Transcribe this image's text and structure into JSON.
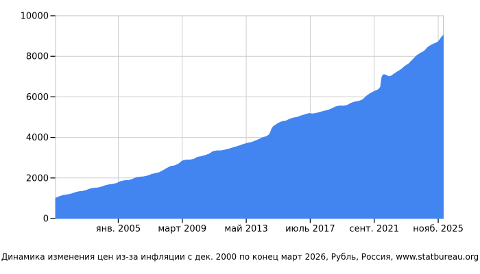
{
  "caption": {
    "text": "Динамика изменения цен из-за инфляции с дек. 2000 по конец март 2026, Рубль, Россия, www.statbureau.org"
  },
  "colors": {
    "area_fill": "#4285f0",
    "gridline": "#cccccc",
    "plot_border": "#c0c0c0",
    "tick_mark": "#000000",
    "label_text": "#000000",
    "background": "#ffffff"
  },
  "chart_data": {
    "type": "area",
    "title": "Динамика изменения цен из-за инфляции с дек. 2000 по конец март 2026, Рубль, Россия, www.statbureau.org",
    "xlabel": "",
    "ylabel": "",
    "x_unit": "months since дек. 2000",
    "x_start_label": "дек. 2000",
    "x_end_label": "март 2026",
    "x_max": 303,
    "ylim": [
      0,
      10000
    ],
    "grid": true,
    "legend": "none",
    "y_ticks": [
      {
        "value": 0,
        "label": "0"
      },
      {
        "value": 2000,
        "label": "2000"
      },
      {
        "value": 4000,
        "label": "4000"
      },
      {
        "value": 6000,
        "label": "6000"
      },
      {
        "value": 8000,
        "label": "8000"
      },
      {
        "value": 10000,
        "label": "10000"
      }
    ],
    "x_ticks": [
      {
        "month": 49,
        "label": "янв. 2005"
      },
      {
        "month": 99,
        "label": "март 2009"
      },
      {
        "month": 149,
        "label": "май 2013"
      },
      {
        "month": 199,
        "label": "июль 2017"
      },
      {
        "month": 249,
        "label": "сент. 2021"
      },
      {
        "month": 299,
        "label": "нояб. 2025"
      }
    ],
    "points": [
      [
        0,
        1000
      ],
      [
        3,
        1080
      ],
      [
        6,
        1140
      ],
      [
        9,
        1170
      ],
      [
        12,
        1205
      ],
      [
        15,
        1272
      ],
      [
        18,
        1322
      ],
      [
        21,
        1342
      ],
      [
        24,
        1392
      ],
      [
        27,
        1462
      ],
      [
        30,
        1500
      ],
      [
        33,
        1512
      ],
      [
        36,
        1557
      ],
      [
        39,
        1630
      ],
      [
        42,
        1670
      ],
      [
        45,
        1690
      ],
      [
        48,
        1740
      ],
      [
        51,
        1830
      ],
      [
        54,
        1873
      ],
      [
        57,
        1880
      ],
      [
        60,
        1928
      ],
      [
        63,
        2022
      ],
      [
        66,
        2045
      ],
      [
        69,
        2060
      ],
      [
        72,
        2105
      ],
      [
        75,
        2176
      ],
      [
        78,
        2224
      ],
      [
        81,
        2266
      ],
      [
        84,
        2362
      ],
      [
        87,
        2478
      ],
      [
        90,
        2570
      ],
      [
        93,
        2602
      ],
      [
        96,
        2685
      ],
      [
        99,
        2842
      ],
      [
        102,
        2890
      ],
      [
        105,
        2890
      ],
      [
        108,
        2922
      ],
      [
        111,
        3022
      ],
      [
        114,
        3057
      ],
      [
        117,
        3111
      ],
      [
        120,
        3180
      ],
      [
        123,
        3303
      ],
      [
        126,
        3341
      ],
      [
        129,
        3341
      ],
      [
        132,
        3374
      ],
      [
        135,
        3422
      ],
      [
        138,
        3480
      ],
      [
        141,
        3533
      ],
      [
        144,
        3594
      ],
      [
        147,
        3662
      ],
      [
        150,
        3717
      ],
      [
        153,
        3750
      ],
      [
        156,
        3826
      ],
      [
        159,
        3906
      ],
      [
        162,
        3992
      ],
      [
        165,
        4048
      ],
      [
        167,
        4136
      ],
      [
        168,
        4260
      ],
      [
        169,
        4424
      ],
      [
        170,
        4522
      ],
      [
        171,
        4576
      ],
      [
        174,
        4698
      ],
      [
        177,
        4779
      ],
      [
        180,
        4811
      ],
      [
        183,
        4905
      ],
      [
        186,
        4963
      ],
      [
        189,
        4998
      ],
      [
        192,
        5068
      ],
      [
        195,
        5120
      ],
      [
        198,
        5182
      ],
      [
        201,
        5161
      ],
      [
        204,
        5196
      ],
      [
        207,
        5245
      ],
      [
        210,
        5302
      ],
      [
        213,
        5341
      ],
      [
        216,
        5418
      ],
      [
        219,
        5514
      ],
      [
        222,
        5554
      ],
      [
        225,
        5546
      ],
      [
        228,
        5583
      ],
      [
        231,
        5688
      ],
      [
        234,
        5754
      ],
      [
        237,
        5780
      ],
      [
        240,
        5857
      ],
      [
        243,
        6037
      ],
      [
        246,
        6170
      ],
      [
        249,
        6266
      ],
      [
        252,
        6349
      ],
      [
        253,
        6412
      ],
      [
        254,
        6487
      ],
      [
        255,
        6980
      ],
      [
        256,
        7089
      ],
      [
        257,
        7097
      ],
      [
        258,
        7072
      ],
      [
        259,
        7044
      ],
      [
        260,
        7007
      ],
      [
        261,
        7011
      ],
      [
        262,
        7023
      ],
      [
        263,
        7050
      ],
      [
        264,
        7105
      ],
      [
        267,
        7232
      ],
      [
        270,
        7345
      ],
      [
        273,
        7515
      ],
      [
        276,
        7632
      ],
      [
        279,
        7825
      ],
      [
        282,
        8025
      ],
      [
        285,
        8150
      ],
      [
        288,
        8250
      ],
      [
        291,
        8450
      ],
      [
        294,
        8570
      ],
      [
        297,
        8650
      ],
      [
        299,
        8720
      ],
      [
        300,
        8800
      ],
      [
        301,
        8890
      ],
      [
        302,
        8970
      ],
      [
        303,
        9030
      ]
    ]
  }
}
